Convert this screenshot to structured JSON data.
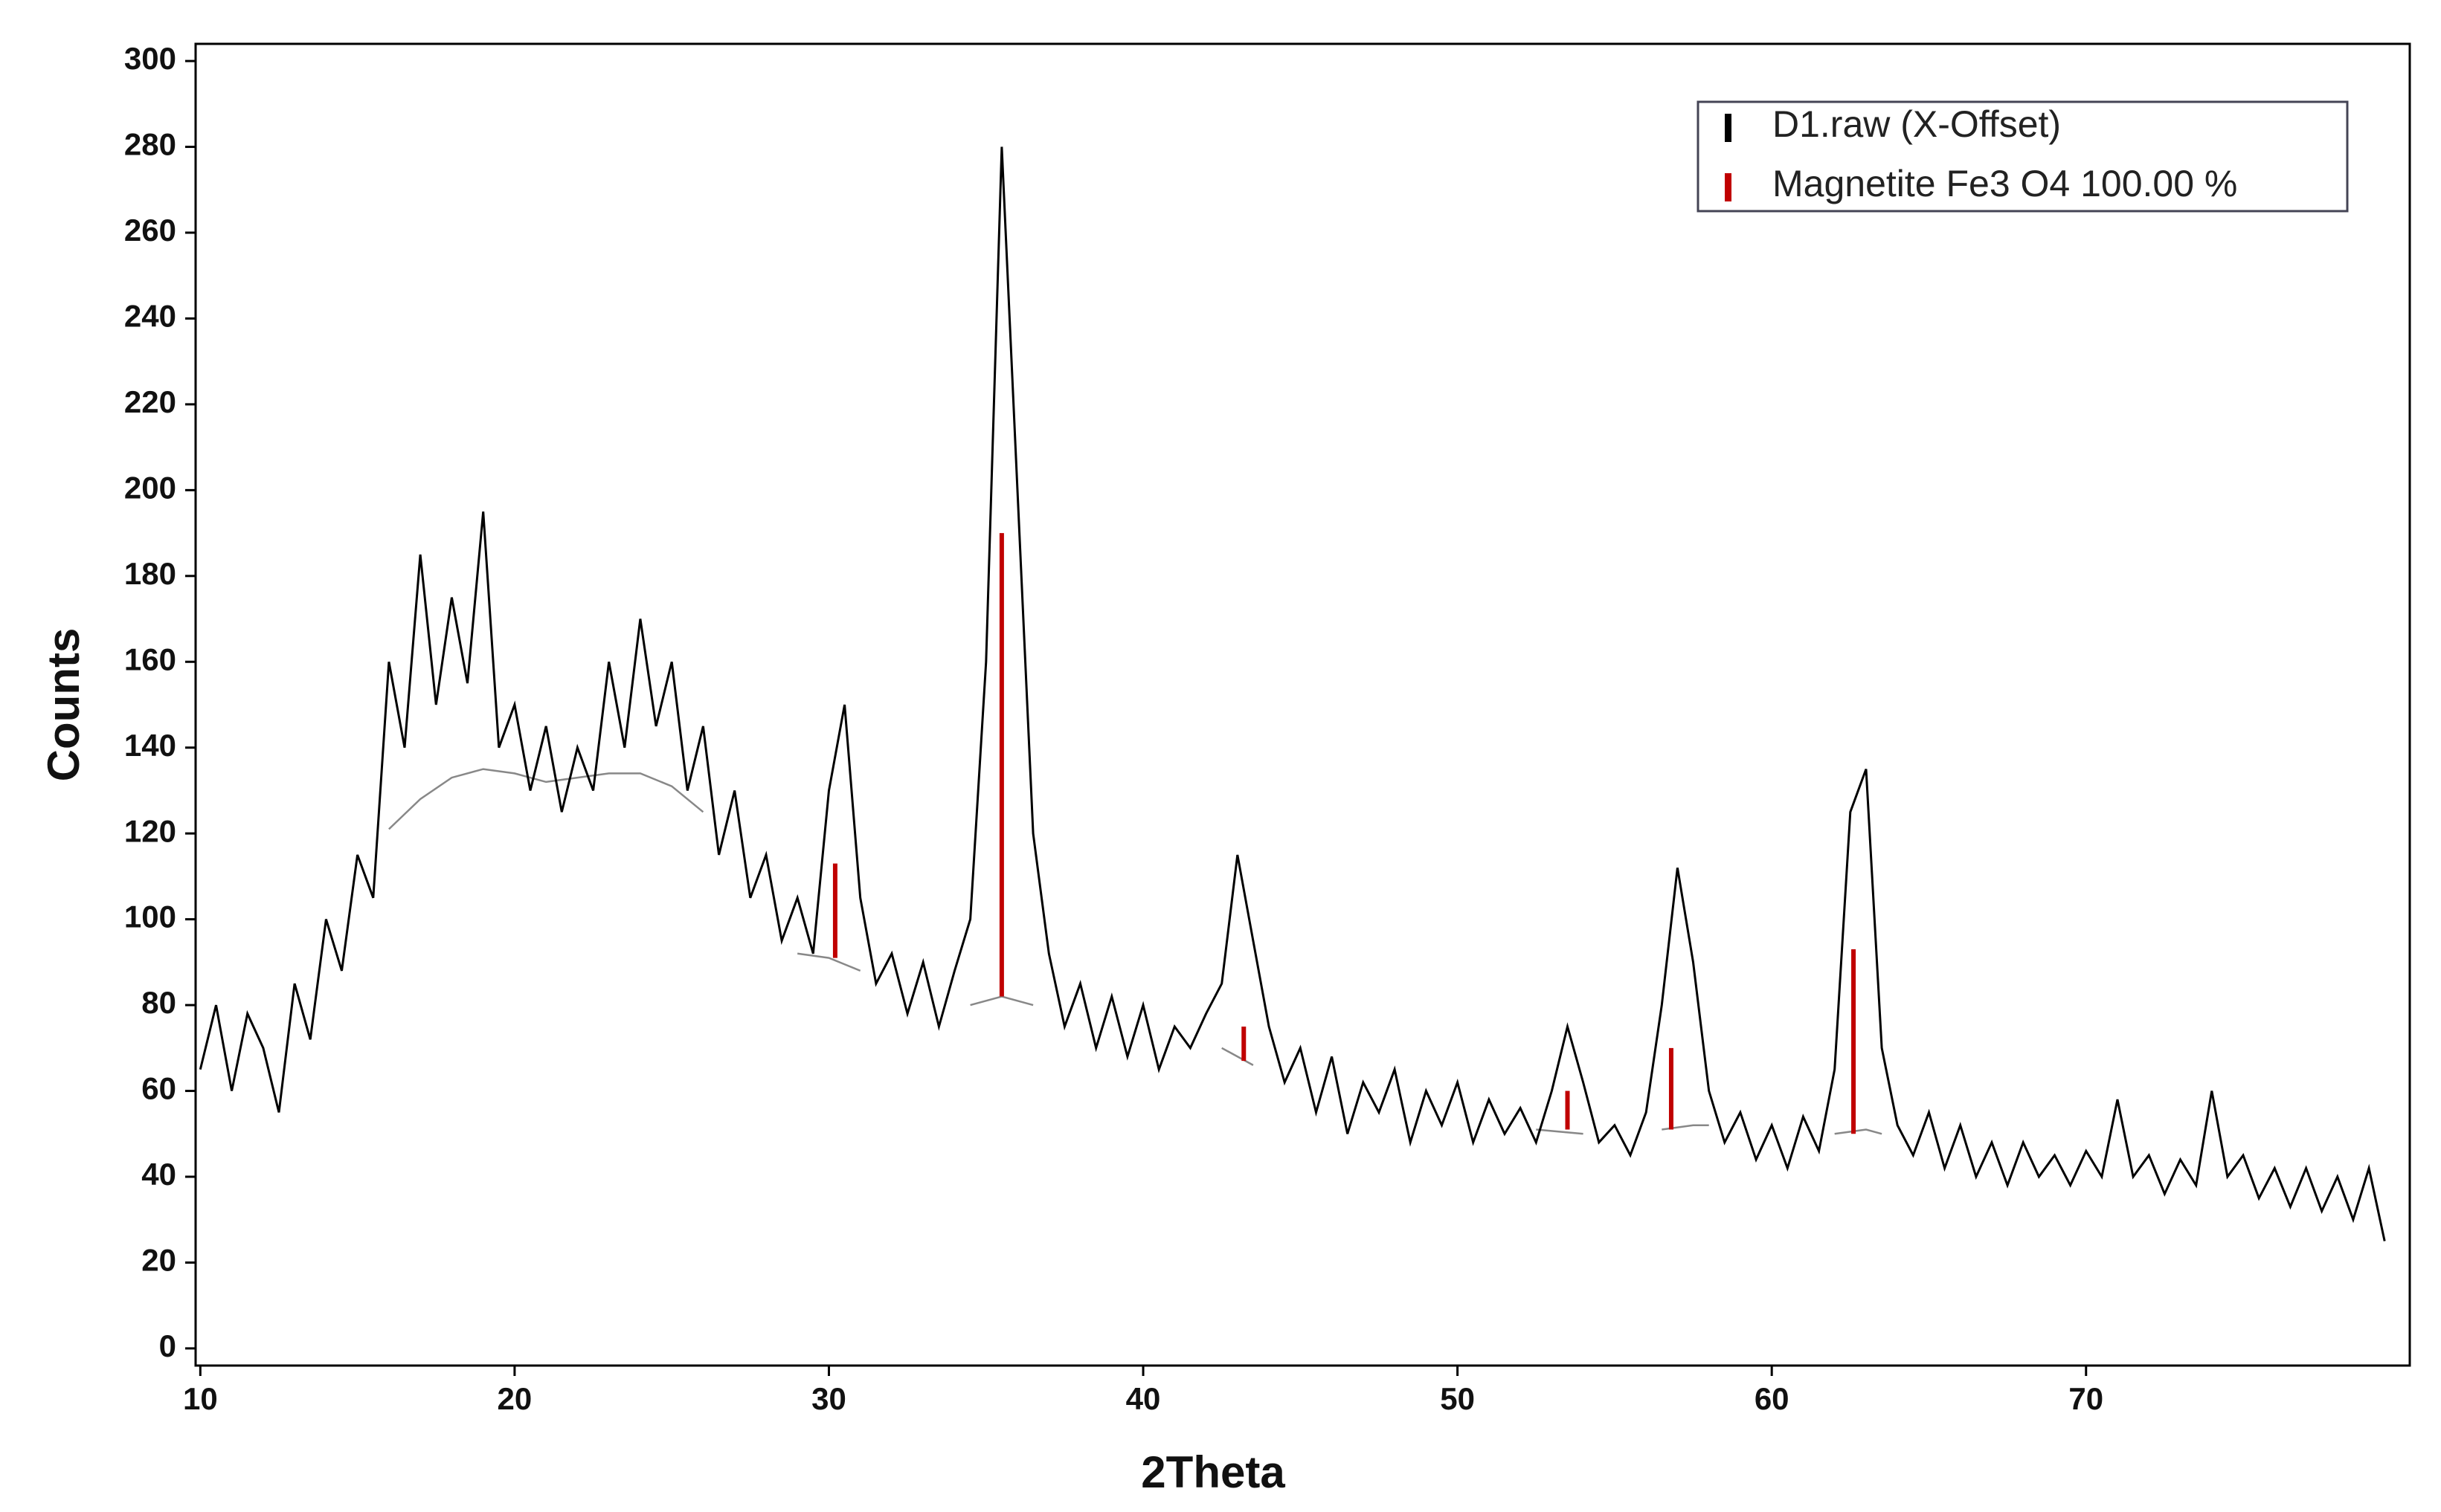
{
  "chart_data": {
    "type": "line",
    "x_label": "2Theta",
    "y_label": "Counts",
    "xlim": [
      9.85,
      80.3
    ],
    "ylim": [
      -4,
      304
    ],
    "xticks": [
      10,
      20,
      30,
      40,
      50,
      60,
      70
    ],
    "yticks": [
      0,
      20,
      40,
      60,
      80,
      100,
      120,
      140,
      160,
      180,
      200,
      220,
      240,
      260,
      280,
      300
    ],
    "legend": "upper right",
    "series": [
      {
        "name": "D1.raw (X-Offset)",
        "color": "#000000",
        "x": [
          10,
          10.5,
          11,
          11.5,
          12,
          12.5,
          13,
          13.5,
          14,
          14.5,
          15,
          15.5,
          16,
          16.5,
          17,
          17.5,
          18,
          18.5,
          19,
          19.5,
          20,
          20.5,
          21,
          21.5,
          22,
          22.5,
          23,
          23.5,
          24,
          24.5,
          25,
          25.5,
          26,
          26.5,
          27,
          27.5,
          28,
          28.5,
          29,
          29.5,
          30,
          30.5,
          31,
          31.5,
          32,
          32.5,
          33,
          33.5,
          34,
          34.5,
          35,
          35.5,
          36,
          36.5,
          37,
          37.5,
          38,
          38.5,
          39,
          39.5,
          40,
          40.5,
          41,
          41.5,
          42,
          42.5,
          43,
          43.5,
          44,
          44.5,
          45,
          45.5,
          46,
          46.5,
          47,
          47.5,
          48,
          48.5,
          49,
          49.5,
          50,
          50.5,
          51,
          51.5,
          52,
          52.5,
          53,
          53.5,
          54,
          54.5,
          55,
          55.5,
          56,
          56.5,
          57,
          57.5,
          58,
          58.5,
          59,
          59.5,
          60,
          60.5,
          61,
          61.5,
          62,
          62.5,
          63,
          63.5,
          64,
          64.5,
          65,
          65.5,
          66,
          66.5,
          67,
          67.5,
          68,
          68.5,
          69,
          69.5,
          70,
          70.5,
          71,
          71.5,
          72,
          72.5,
          73,
          73.5,
          74,
          74.5,
          75,
          75.5,
          76,
          76.5,
          77,
          77.5,
          78,
          78.5,
          79,
          79.5
        ],
        "values": [
          65,
          80,
          60,
          78,
          70,
          55,
          85,
          72,
          100,
          88,
          115,
          105,
          160,
          140,
          185,
          150,
          175,
          155,
          195,
          140,
          150,
          130,
          145,
          125,
          140,
          130,
          160,
          140,
          170,
          145,
          160,
          130,
          145,
          115,
          130,
          105,
          115,
          95,
          105,
          92,
          130,
          150,
          105,
          85,
          92,
          78,
          90,
          75,
          88,
          100,
          160,
          280,
          200,
          120,
          92,
          75,
          85,
          70,
          82,
          68,
          80,
          65,
          75,
          70,
          78,
          85,
          115,
          95,
          75,
          62,
          70,
          55,
          68,
          50,
          62,
          55,
          65,
          48,
          60,
          52,
          62,
          48,
          58,
          50,
          56,
          48,
          60,
          75,
          62,
          48,
          52,
          45,
          55,
          80,
          112,
          90,
          60,
          48,
          55,
          44,
          52,
          42,
          54,
          46,
          65,
          125,
          135,
          70,
          52,
          45,
          55,
          42,
          52,
          40,
          48,
          38,
          48,
          40,
          45,
          38,
          46,
          40,
          58,
          40,
          45,
          36,
          44,
          38,
          60,
          40,
          45,
          35,
          42,
          33,
          42,
          32,
          40,
          30,
          42,
          25
        ]
      },
      {
        "name": "Magnetite Fe3 O4 100.00 %",
        "color": "#c00000",
        "x": [
          30.2,
          35.5,
          43.2,
          53.5,
          56.8,
          62.6
        ],
        "values": [
          113,
          190,
          75,
          60,
          70,
          93
        ],
        "base": [
          91,
          82,
          67,
          51,
          51,
          50
        ]
      }
    ],
    "background": {
      "color": "#888888",
      "x": [
        16,
        17,
        18,
        19,
        20,
        21,
        22,
        23,
        24,
        25,
        26,
        27,
        29,
        30,
        31,
        33,
        34.5,
        35.5,
        36.5,
        40,
        42.5,
        43.5,
        48,
        52.5,
        54,
        55,
        56.5,
        57.5,
        58,
        60,
        62,
        63,
        63.5
      ],
      "values": [
        121,
        128,
        133,
        135,
        134,
        132,
        133,
        134,
        134,
        131,
        125,
        null,
        92,
        91,
        88,
        null,
        80,
        82,
        80,
        null,
        70,
        66,
        null,
        51,
        50,
        null,
        51,
        52,
        52,
        null,
        50,
        51,
        50
      ]
    }
  }
}
